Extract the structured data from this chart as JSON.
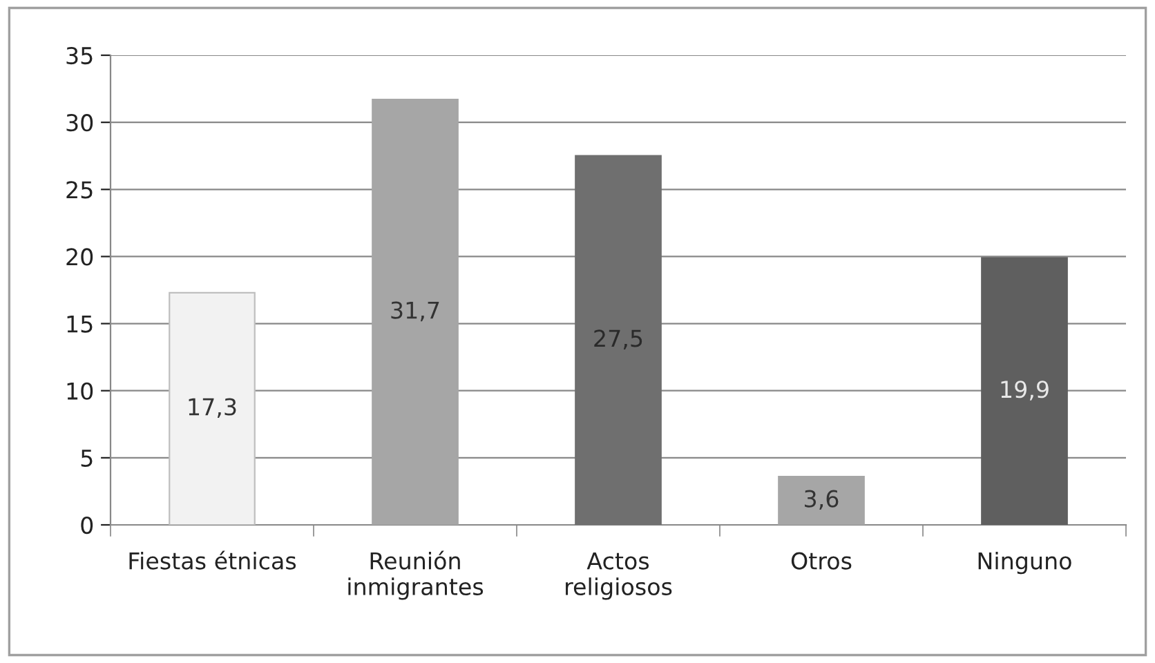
{
  "chart_data": {
    "type": "bar",
    "categories": [
      "Fiestas étnicas",
      "Reunión\ninmigrantes",
      "Actos\nreligiosos",
      "Otros",
      "Ninguno"
    ],
    "values": [
      17.3,
      31.7,
      27.5,
      3.6,
      19.9
    ],
    "colors": [
      "#f2f2f2",
      "#a6a6a6",
      "#6f6f6f",
      "#a6a6a6",
      "#5f5f5f"
    ],
    "value_labels": [
      "17,3",
      "31,7",
      "27,5",
      "3,6",
      "19,9"
    ],
    "ylim": [
      0,
      35
    ],
    "yticks": [
      0,
      5,
      10,
      15,
      20,
      25,
      30,
      35
    ],
    "grid": "y",
    "legend": false
  }
}
